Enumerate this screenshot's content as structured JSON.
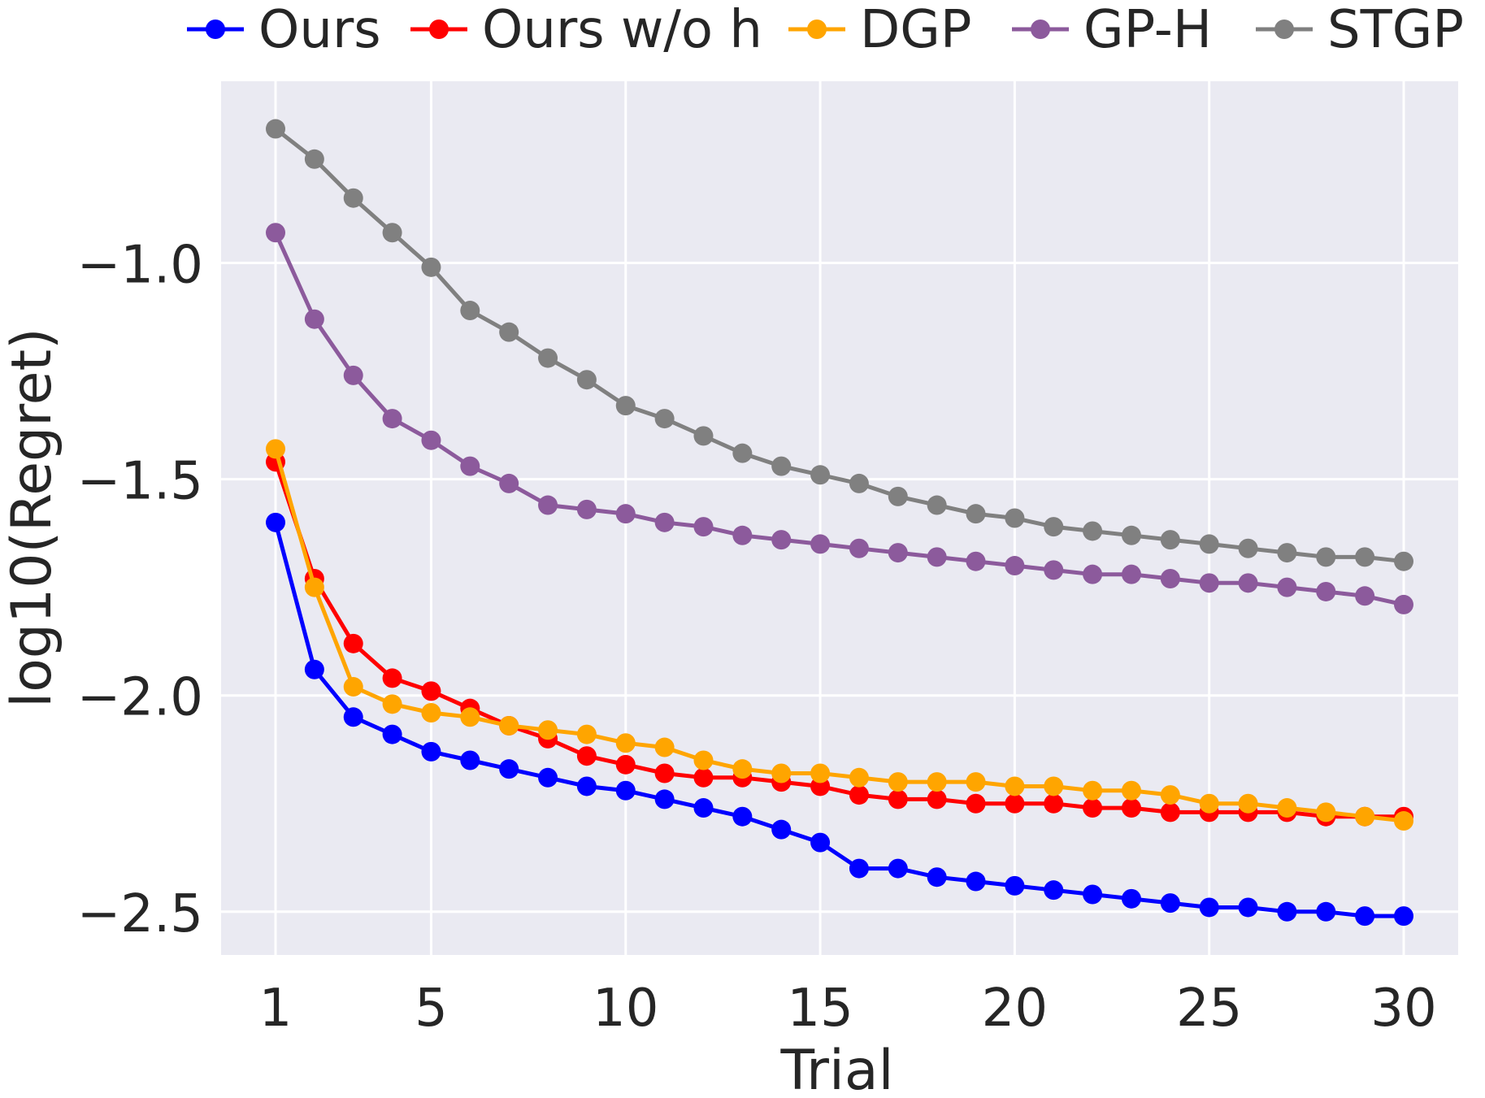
{
  "chart_data": {
    "type": "line",
    "title": "",
    "xlabel": "Trial",
    "ylabel": "log10(Regret)",
    "xlim": [
      -0.4,
      31.4
    ],
    "ylim": [
      -2.6,
      -0.58
    ],
    "xticks": [
      1,
      5,
      10,
      15,
      20,
      25,
      30
    ],
    "xtick_labels": [
      "1",
      "5",
      "10",
      "15",
      "20",
      "25",
      "30"
    ],
    "yticks": [
      -1.0,
      -1.5,
      -2.0,
      -2.5
    ],
    "ytick_labels": [
      "−1.0",
      "−1.5",
      "−2.0",
      "−2.5"
    ],
    "grid": true,
    "background": "#eaeaf2",
    "legend_position": "top",
    "x": [
      1,
      2,
      3,
      4,
      5,
      6,
      7,
      8,
      9,
      10,
      11,
      12,
      13,
      14,
      15,
      16,
      17,
      18,
      19,
      20,
      21,
      22,
      23,
      24,
      25,
      26,
      27,
      28,
      29,
      30
    ],
    "series": [
      {
        "name": "Ours",
        "color": "#0000ff",
        "values": [
          -1.6,
          -1.94,
          -2.05,
          -2.09,
          -2.13,
          -2.15,
          -2.17,
          -2.19,
          -2.21,
          -2.22,
          -2.24,
          -2.26,
          -2.28,
          -2.31,
          -2.34,
          -2.4,
          -2.4,
          -2.42,
          -2.43,
          -2.44,
          -2.45,
          -2.46,
          -2.47,
          -2.48,
          -2.49,
          -2.49,
          -2.5,
          -2.5,
          -2.51,
          -2.51
        ]
      },
      {
        "name": "Ours w/o h",
        "color": "#ff0000",
        "values": [
          -1.46,
          -1.73,
          -1.88,
          -1.96,
          -1.99,
          -2.03,
          -2.07,
          -2.1,
          -2.14,
          -2.16,
          -2.18,
          -2.19,
          -2.19,
          -2.2,
          -2.21,
          -2.23,
          -2.24,
          -2.24,
          -2.25,
          -2.25,
          -2.25,
          -2.26,
          -2.26,
          -2.27,
          -2.27,
          -2.27,
          -2.27,
          -2.28,
          -2.28,
          -2.28
        ]
      },
      {
        "name": "DGP",
        "color": "#ffa500",
        "values": [
          -1.43,
          -1.75,
          -1.98,
          -2.02,
          -2.04,
          -2.05,
          -2.07,
          -2.08,
          -2.09,
          -2.11,
          -2.12,
          -2.15,
          -2.17,
          -2.18,
          -2.18,
          -2.19,
          -2.2,
          -2.2,
          -2.2,
          -2.21,
          -2.21,
          -2.22,
          -2.22,
          -2.23,
          -2.25,
          -2.25,
          -2.26,
          -2.27,
          -2.28,
          -2.29
        ]
      },
      {
        "name": "GP-H",
        "color": "#8c5a9c",
        "values": [
          -0.93,
          -1.13,
          -1.26,
          -1.36,
          -1.41,
          -1.47,
          -1.51,
          -1.56,
          -1.57,
          -1.58,
          -1.6,
          -1.61,
          -1.63,
          -1.64,
          -1.65,
          -1.66,
          -1.67,
          -1.68,
          -1.69,
          -1.7,
          -1.71,
          -1.72,
          -1.72,
          -1.73,
          -1.74,
          -1.74,
          -1.75,
          -1.76,
          -1.77,
          -1.79
        ]
      },
      {
        "name": "STGP",
        "color": "#808080",
        "values": [
          -0.69,
          -0.76,
          -0.85,
          -0.93,
          -1.01,
          -1.11,
          -1.16,
          -1.22,
          -1.27,
          -1.33,
          -1.36,
          -1.4,
          -1.44,
          -1.47,
          -1.49,
          -1.51,
          -1.54,
          -1.56,
          -1.58,
          -1.59,
          -1.61,
          -1.62,
          -1.63,
          -1.64,
          -1.65,
          -1.66,
          -1.67,
          -1.68,
          -1.68,
          -1.69
        ]
      }
    ]
  }
}
